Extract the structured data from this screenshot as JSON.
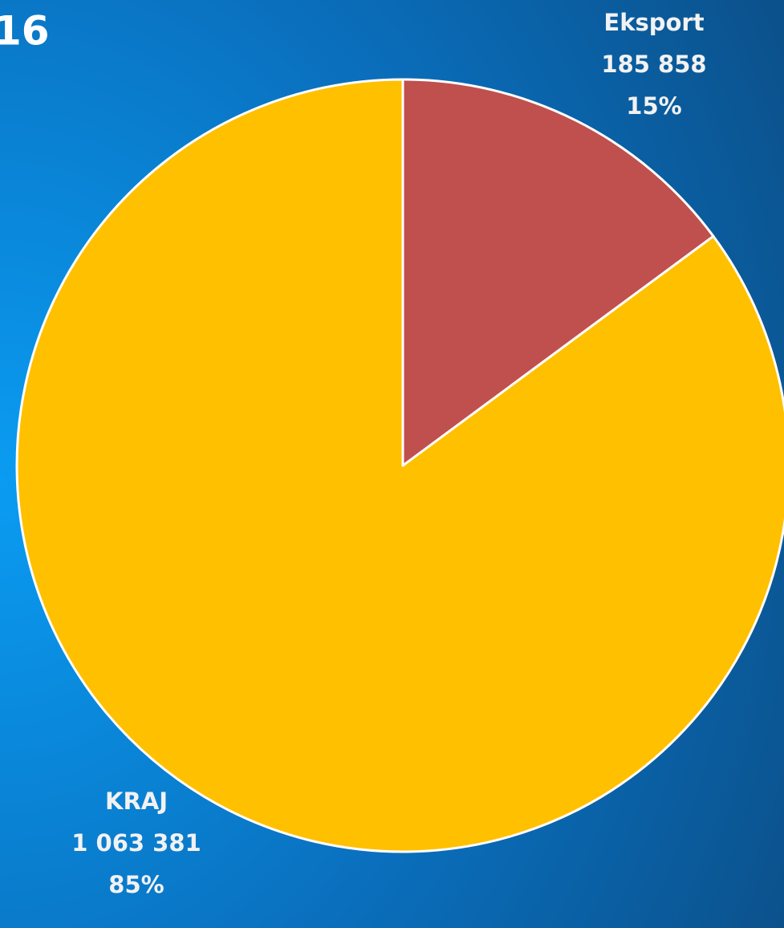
{
  "chart_data": {
    "type": "pie",
    "title": "16",
    "categories": [
      "Eksport",
      "KRAJ"
    ],
    "values": [
      185858,
      1063381
    ],
    "value_labels": [
      "185 858",
      "1 063 381"
    ],
    "percents": [
      15,
      85
    ],
    "percent_labels": [
      "15%",
      "85%"
    ],
    "colors": [
      "#c0504d",
      "#ffc000"
    ]
  }
}
